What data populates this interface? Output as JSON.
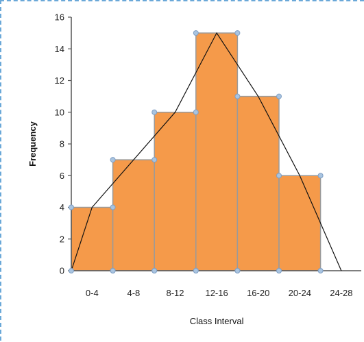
{
  "chart_data": {
    "type": "bar",
    "subtype": "histogram-with-frequency-polygon",
    "categories": [
      "0-4",
      "4-8",
      "8-12",
      "12-16",
      "16-20",
      "20-24",
      "24-28"
    ],
    "values": [
      4,
      7,
      10,
      15,
      11,
      6,
      0
    ],
    "bin_edges": [
      0,
      4,
      8,
      12,
      16,
      20,
      24
    ],
    "polygon": {
      "x": [
        0,
        2,
        10,
        14,
        18,
        22,
        26
      ],
      "y": [
        0,
        4,
        10,
        15,
        11,
        6,
        0
      ]
    },
    "xlabel": "Class Interval",
    "ylabel": "Frequency",
    "ylim": [
      0,
      16
    ],
    "yticks": [
      0,
      2,
      4,
      6,
      8,
      10,
      12,
      14,
      16
    ],
    "grid": false,
    "legend": "none",
    "colors": {
      "bar_fill": "#f59a4a",
      "bar_stroke": "#9a9a9a",
      "polygon": "#111111",
      "marker": "#a9c4e0",
      "axis": "#555555"
    }
  }
}
